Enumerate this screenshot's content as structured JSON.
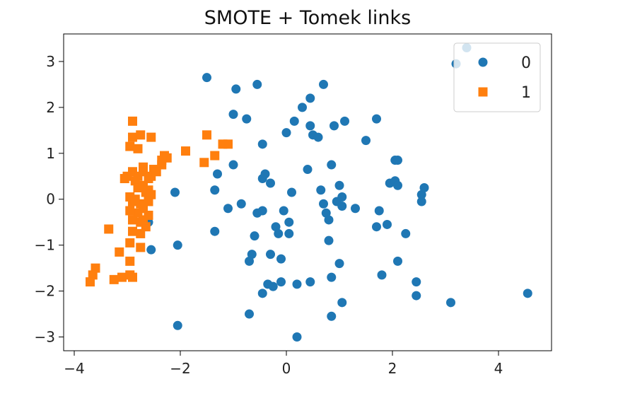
{
  "chart_data": {
    "type": "scatter",
    "title": "SMOTE + Tomek links",
    "xlabel": "",
    "ylabel": "",
    "xlim": [
      -4.2,
      5.0
    ],
    "ylim": [
      -3.3,
      3.6
    ],
    "xticks": [
      -4,
      -2,
      0,
      2,
      4
    ],
    "yticks": [
      -3,
      -2,
      -1,
      0,
      1,
      2,
      3
    ],
    "xtick_labels": [
      "−4",
      "−2",
      "0",
      "2",
      "4"
    ],
    "ytick_labels": [
      "−3",
      "−2",
      "−1",
      "0",
      "1",
      "2",
      "3"
    ],
    "grid": false,
    "legend": {
      "position": "top-right",
      "show": true
    },
    "series": [
      {
        "name": "0",
        "marker": "circle",
        "color": "#1f77b4",
        "points": [
          [
            -1.5,
            2.65
          ],
          [
            -0.95,
            2.4
          ],
          [
            -0.55,
            2.5
          ],
          [
            0.3,
            2.0
          ],
          [
            0.45,
            2.2
          ],
          [
            0.7,
            2.5
          ],
          [
            -1.0,
            1.85
          ],
          [
            -0.75,
            1.75
          ],
          [
            0.15,
            1.7
          ],
          [
            0.45,
            1.6
          ],
          [
            0.5,
            1.4
          ],
          [
            0.6,
            1.35
          ],
          [
            0.9,
            1.6
          ],
          [
            1.1,
            1.7
          ],
          [
            1.7,
            1.75
          ],
          [
            0.0,
            1.45
          ],
          [
            -0.45,
            1.2
          ],
          [
            1.5,
            1.28
          ],
          [
            3.2,
            2.95
          ],
          [
            3.4,
            3.3
          ],
          [
            -1.3,
            0.55
          ],
          [
            -1.0,
            0.75
          ],
          [
            -0.4,
            0.55
          ],
          [
            -0.45,
            0.45
          ],
          [
            -0.3,
            0.35
          ],
          [
            0.1,
            0.15
          ],
          [
            0.4,
            0.65
          ],
          [
            0.85,
            0.75
          ],
          [
            0.65,
            0.2
          ],
          [
            1.0,
            0.3
          ],
          [
            1.05,
            0.05
          ],
          [
            0.7,
            -0.1
          ],
          [
            0.75,
            -0.3
          ],
          [
            0.8,
            -0.45
          ],
          [
            1.3,
            -0.2
          ],
          [
            -2.1,
            0.15
          ],
          [
            -1.35,
            0.2
          ],
          [
            -1.1,
            -0.2
          ],
          [
            -0.85,
            -0.1
          ],
          [
            -0.55,
            -0.3
          ],
          [
            -0.45,
            -0.25
          ],
          [
            -0.05,
            -0.25
          ],
          [
            -0.2,
            -0.6
          ],
          [
            -0.15,
            -0.75
          ],
          [
            0.05,
            -0.5
          ],
          [
            0.05,
            -0.75
          ],
          [
            -0.6,
            -0.8
          ],
          [
            -1.35,
            -0.7
          ],
          [
            -2.05,
            -1.0
          ],
          [
            -2.55,
            -1.1
          ],
          [
            -2.6,
            -0.5
          ],
          [
            -0.65,
            -1.2
          ],
          [
            -0.7,
            -1.35
          ],
          [
            -0.3,
            -1.2
          ],
          [
            -0.1,
            -1.3
          ],
          [
            0.8,
            -0.9
          ],
          [
            1.0,
            -1.4
          ],
          [
            0.85,
            -1.7
          ],
          [
            1.7,
            -0.6
          ],
          [
            1.75,
            -0.25
          ],
          [
            1.9,
            -0.55
          ],
          [
            1.8,
            -1.65
          ],
          [
            2.25,
            -0.75
          ],
          [
            2.1,
            -1.35
          ],
          [
            1.95,
            0.35
          ],
          [
            2.05,
            0.4
          ],
          [
            2.1,
            0.3
          ],
          [
            2.05,
            0.85
          ],
          [
            2.1,
            0.85
          ],
          [
            2.6,
            0.25
          ],
          [
            2.55,
            0.1
          ],
          [
            2.55,
            -0.05
          ],
          [
            -0.45,
            -2.05
          ],
          [
            -0.25,
            -1.9
          ],
          [
            -0.1,
            -1.8
          ],
          [
            0.2,
            -1.85
          ],
          [
            0.45,
            -1.8
          ],
          [
            -0.7,
            -2.5
          ],
          [
            0.85,
            -2.55
          ],
          [
            1.05,
            -2.25
          ],
          [
            0.2,
            -3.0
          ],
          [
            -2.05,
            -2.75
          ],
          [
            2.45,
            -1.8
          ],
          [
            2.45,
            -2.1
          ],
          [
            3.1,
            -2.25
          ],
          [
            4.55,
            -2.05
          ],
          [
            0.95,
            -0.05
          ],
          [
            1.05,
            -0.15
          ],
          [
            -0.35,
            -1.85
          ]
        ]
      },
      {
        "name": "1",
        "marker": "square",
        "color": "#ff7f0e",
        "points": [
          [
            -2.9,
            1.7
          ],
          [
            -2.9,
            1.35
          ],
          [
            -2.75,
            1.4
          ],
          [
            -2.55,
            1.35
          ],
          [
            -2.95,
            1.15
          ],
          [
            -2.8,
            1.1
          ],
          [
            -1.5,
            1.4
          ],
          [
            -1.2,
            1.2
          ],
          [
            -1.1,
            1.2
          ],
          [
            -1.35,
            0.95
          ],
          [
            -1.55,
            0.8
          ],
          [
            -1.9,
            1.05
          ],
          [
            -2.3,
            0.95
          ],
          [
            -2.25,
            0.9
          ],
          [
            -2.35,
            0.75
          ],
          [
            -2.5,
            0.65
          ],
          [
            -2.7,
            0.6
          ],
          [
            -2.9,
            0.6
          ],
          [
            -3.0,
            0.5
          ],
          [
            -2.85,
            0.4
          ],
          [
            -2.8,
            0.25
          ],
          [
            -2.7,
            0.3
          ],
          [
            -2.65,
            0.15
          ],
          [
            -2.6,
            0.2
          ],
          [
            -2.95,
            0.05
          ],
          [
            -2.9,
            -0.05
          ],
          [
            -2.75,
            -0.1
          ],
          [
            -2.7,
            -0.2
          ],
          [
            -2.8,
            -0.3
          ],
          [
            -2.6,
            -0.35
          ],
          [
            -2.9,
            -0.45
          ],
          [
            -2.75,
            -0.5
          ],
          [
            -2.65,
            -0.6
          ],
          [
            -2.9,
            -0.7
          ],
          [
            -2.75,
            -0.75
          ],
          [
            -3.35,
            -0.65
          ],
          [
            -2.95,
            -0.95
          ],
          [
            -2.75,
            -1.05
          ],
          [
            -3.15,
            -1.15
          ],
          [
            -2.95,
            -1.35
          ],
          [
            -3.6,
            -1.5
          ],
          [
            -3.65,
            -1.65
          ],
          [
            -3.7,
            -1.8
          ],
          [
            -3.25,
            -1.75
          ],
          [
            -3.1,
            -1.7
          ],
          [
            -2.9,
            -1.7
          ],
          [
            -2.95,
            -1.65
          ],
          [
            -2.7,
            0.7
          ],
          [
            -2.55,
            0.5
          ],
          [
            -2.55,
            0.1
          ],
          [
            -2.85,
            0.0
          ],
          [
            -2.6,
            -0.05
          ],
          [
            -2.95,
            -0.25
          ],
          [
            -2.7,
            -0.45
          ],
          [
            -3.05,
            0.45
          ],
          [
            -2.8,
            0.5
          ],
          [
            -2.6,
            0.45
          ],
          [
            -2.45,
            0.6
          ],
          [
            -2.35,
            0.85
          ]
        ]
      }
    ]
  }
}
